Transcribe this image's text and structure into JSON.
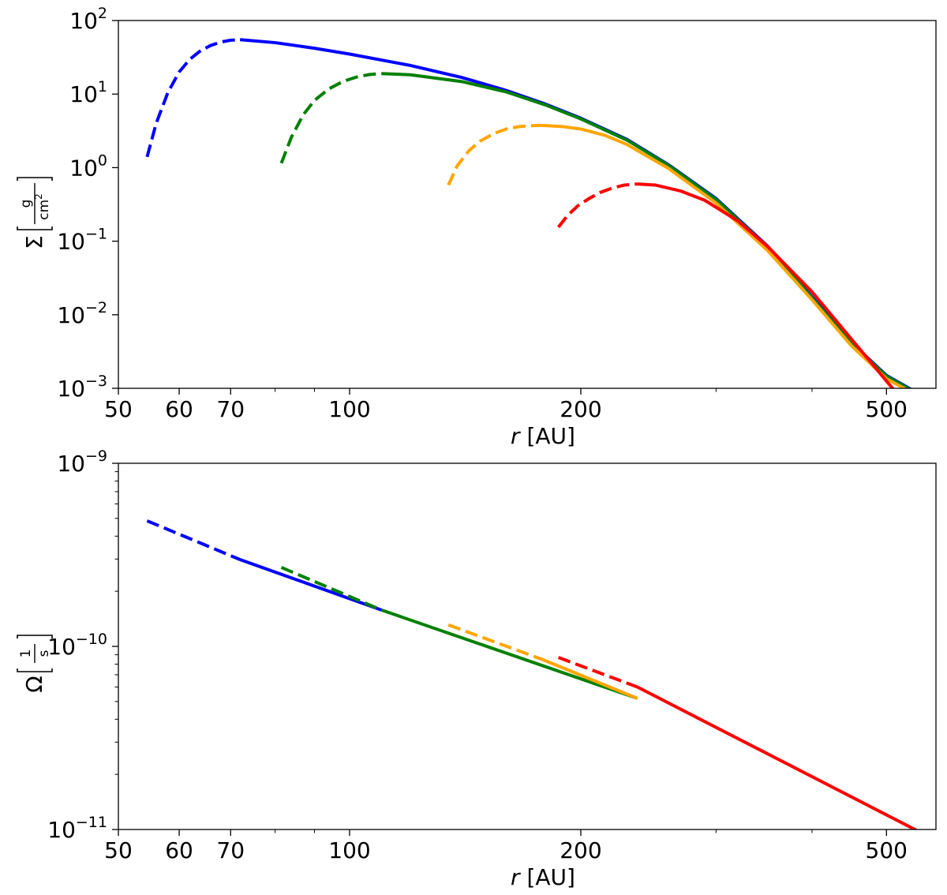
{
  "chart_data": [
    {
      "type": "line",
      "id": "sigma",
      "xscale": "log",
      "yscale": "log",
      "xlim": [
        50,
        580
      ],
      "ylim": [
        0.001,
        100
      ],
      "xlabel": {
        "italic": "r",
        "rest": " [AU]"
      },
      "ylabel": {
        "symbol": "Σ",
        "num": "g",
        "den_base": "cm",
        "den_sup": "2"
      },
      "xticks": [
        {
          "value": 50,
          "label": "50"
        },
        {
          "value": 60,
          "label": "60"
        },
        {
          "value": 70,
          "label": "70"
        },
        {
          "value": 100,
          "label": "100"
        },
        {
          "value": 200,
          "label": "200"
        },
        {
          "value": 500,
          "label": "500"
        }
      ],
      "yticks": [
        {
          "value": 100,
          "base": "10",
          "exp": "2"
        },
        {
          "value": 10,
          "base": "10",
          "exp": "1"
        },
        {
          "value": 1,
          "base": "10",
          "exp": "0"
        },
        {
          "value": 0.1,
          "base": "10",
          "exp": "−1"
        },
        {
          "value": 0.01,
          "base": "10",
          "exp": "−2"
        },
        {
          "value": 0.001,
          "base": "10",
          "exp": "−3"
        }
      ],
      "series": [
        {
          "color": "#0000ff",
          "dashed": {
            "x": [
              54.5,
              56,
              58,
              60,
              62,
              64,
              66,
              68,
              70,
              72
            ],
            "y": [
              1.4,
              4.0,
              10.5,
              20.0,
              30.0,
              39.0,
              46.0,
              51.0,
              54.0,
              55.0
            ]
          },
          "solid": {
            "x": [
              72,
              80,
              90,
              100,
              120,
              140,
              160,
              180,
              200,
              230,
              260,
              300,
              350,
              400,
              450,
              500,
              540
            ],
            "y": [
              55.0,
              50.0,
              42.0,
              35.0,
              24.5,
              16.8,
              11.2,
              7.3,
              4.7,
              2.4,
              1.1,
              0.38,
              0.086,
              0.0175,
              0.0042,
              0.0015,
              0.00095
            ]
          }
        },
        {
          "color": "#008000",
          "dashed": {
            "x": [
              81.5,
              84,
              87,
              90,
              94,
              98,
              102,
              106,
              110
            ],
            "y": [
              1.15,
              2.6,
              5.2,
              8.2,
              11.8,
              14.8,
              17.0,
              18.4,
              19.0
            ]
          },
          "solid": {
            "x": [
              110,
              120,
              140,
              160,
              180,
              200,
              230,
              260,
              300,
              350,
              400,
              450,
              500,
              540
            ],
            "y": [
              19.0,
              18.3,
              14.8,
              10.7,
              7.1,
              4.6,
              2.35,
              1.08,
              0.37,
              0.084,
              0.017,
              0.0041,
              0.00147,
              0.00093
            ]
          }
        },
        {
          "color": "#ffa500",
          "dashed": {
            "x": [
              134.5,
              138,
              143,
              148,
              154,
              160,
              166,
              172,
              178
            ],
            "y": [
              0.58,
              1.05,
              1.7,
              2.3,
              2.9,
              3.35,
              3.6,
              3.72,
              3.75
            ]
          },
          "solid": {
            "x": [
              178,
              190,
              200,
              215,
              230,
              260,
              300,
              350,
              400,
              450,
              500,
              535
            ],
            "y": [
              3.75,
              3.6,
              3.35,
              2.75,
              2.05,
              0.98,
              0.33,
              0.075,
              0.016,
              0.0038,
              0.00135,
              0.00092
            ]
          }
        },
        {
          "color": "#ff0000",
          "dashed": {
            "x": [
              187,
              192,
              198,
              205,
              212,
              220,
              228,
              237
            ],
            "y": [
              0.155,
              0.22,
              0.3,
              0.38,
              0.46,
              0.53,
              0.58,
              0.6
            ]
          },
          "solid": {
            "x": [
              237,
              250,
              270,
              290,
              320,
              350,
              400,
              450,
              510
            ],
            "y": [
              0.6,
              0.58,
              0.48,
              0.36,
              0.19,
              0.085,
              0.0205,
              0.0047,
              0.00098
            ]
          }
        }
      ]
    },
    {
      "type": "line",
      "id": "omega",
      "xscale": "log",
      "yscale": "log",
      "xlim": [
        50,
        580
      ],
      "ylim": [
        1e-11,
        1e-09
      ],
      "xlabel": {
        "italic": "r",
        "rest": " [AU]"
      },
      "ylabel": {
        "symbol": "Ω",
        "num": "1",
        "den_base": "s",
        "den_sup": ""
      },
      "xticks": [
        {
          "value": 50,
          "label": "50"
        },
        {
          "value": 60,
          "label": "60"
        },
        {
          "value": 70,
          "label": "70"
        },
        {
          "value": 100,
          "label": "100"
        },
        {
          "value": 200,
          "label": "200"
        },
        {
          "value": 500,
          "label": "500"
        }
      ],
      "yticks": [
        {
          "value": 1e-09,
          "base": "10",
          "exp": "−9"
        },
        {
          "value": 1e-10,
          "base": "10",
          "exp": "−10"
        },
        {
          "value": 1e-11,
          "base": "10",
          "exp": "−11"
        }
      ],
      "series": [
        {
          "color": "#0000ff",
          "dashed": {
            "x": [
              54.5,
              72
            ],
            "y": [
              4.85e-10,
              2.98e-10
            ]
          },
          "solid": {
            "x": [
              72,
              110
            ],
            "y": [
              2.98e-10,
              1.58e-10
            ]
          }
        },
        {
          "color": "#008000",
          "dashed": {
            "x": [
              81.5,
              110
            ],
            "y": [
              2.7e-10,
              1.58e-10
            ]
          },
          "solid": {
            "x": [
              110,
              237
            ],
            "y": [
              1.58e-10,
              5.2e-11
            ]
          }
        },
        {
          "color": "#ffa500",
          "dashed": {
            "x": [
              134.5,
              178
            ],
            "y": [
              1.31e-10,
              8.5e-11
            ]
          },
          "solid": {
            "x": [
              178,
              237
            ],
            "y": [
              8.5e-11,
              5.2e-11
            ]
          }
        },
        {
          "color": "#ff0000",
          "dashed": {
            "x": [
              187,
              237
            ],
            "y": [
              8.7e-11,
              6e-11
            ]
          },
          "solid": {
            "x": [
              237,
              555
            ],
            "y": [
              6e-11,
              9.6e-12
            ]
          }
        }
      ]
    }
  ]
}
